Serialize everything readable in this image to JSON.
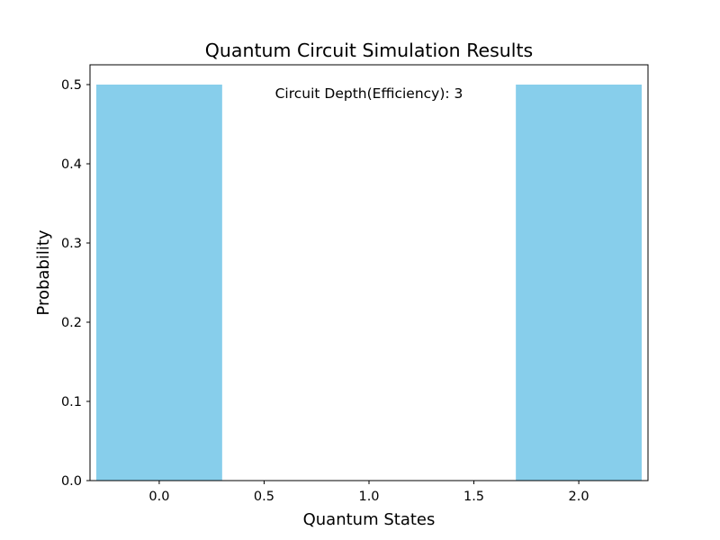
{
  "chart_data": {
    "type": "bar",
    "title": "Quantum Circuit Simulation Results",
    "xlabel": "Quantum States",
    "ylabel": "Probability",
    "x": [
      0,
      2
    ],
    "values": [
      0.5,
      0.5
    ],
    "bar_width": 0.6,
    "xlim": [
      -0.33,
      2.33
    ],
    "ylim": [
      0,
      0.525
    ],
    "xticks": [
      0.0,
      0.5,
      1.0,
      1.5,
      2.0
    ],
    "xtick_labels": [
      "0.0",
      "0.5",
      "1.0",
      "1.5",
      "2.0"
    ],
    "yticks": [
      0.0,
      0.1,
      0.2,
      0.3,
      0.4,
      0.5
    ],
    "ytick_labels": [
      "0.0",
      "0.1",
      "0.2",
      "0.3",
      "0.4",
      "0.5"
    ],
    "bar_color": "#87CEEB",
    "grid": false,
    "annotation": "Circuit Depth(Efficiency): 3"
  }
}
